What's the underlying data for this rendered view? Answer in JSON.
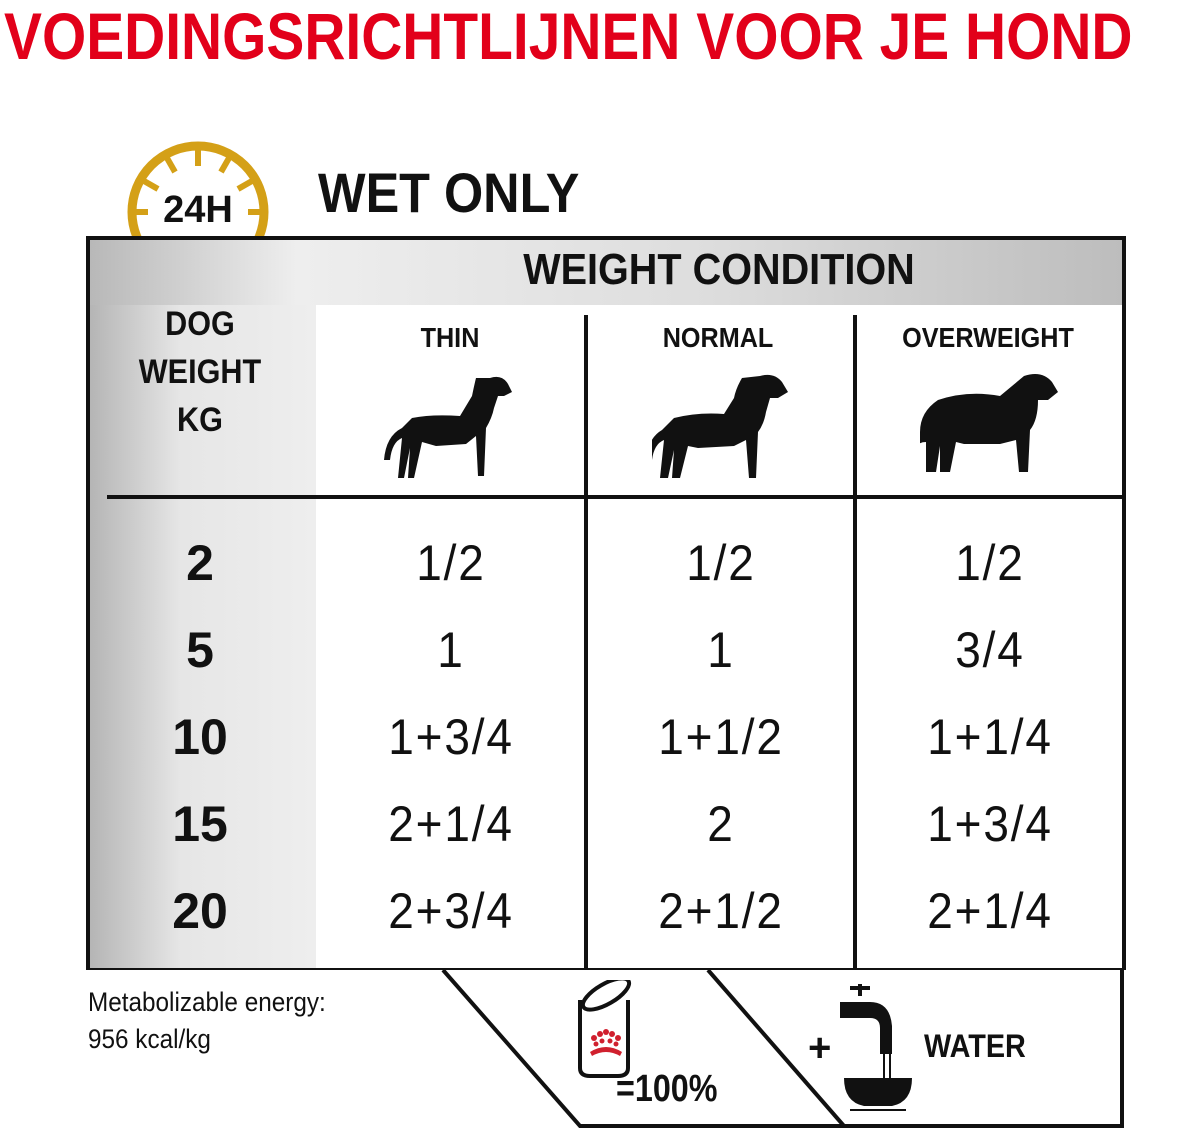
{
  "title": "VOEDINGSRICHTLIJNEN VOOR JE HOND",
  "badge": {
    "label": "24H",
    "icon": "clock-icon",
    "color": "#d4a017"
  },
  "mode": "WET ONLY",
  "table": {
    "group_header": "WEIGHT CONDITION",
    "row_header_lines": [
      "DOG",
      "WEIGHT",
      "KG"
    ],
    "columns": [
      {
        "label": "THIN",
        "icon": "thin-dog-icon"
      },
      {
        "label": "NORMAL",
        "icon": "normal-dog-icon"
      },
      {
        "label": "OVERWEIGHT",
        "icon": "overweight-dog-icon"
      }
    ],
    "rows": [
      {
        "weight": "2",
        "values": [
          "1/2",
          "1/2",
          "1/2"
        ]
      },
      {
        "weight": "5",
        "values": [
          "1",
          "1",
          "3/4"
        ]
      },
      {
        "weight": "10",
        "values": [
          "1+3/4",
          "1+1/2",
          "1+1/4"
        ]
      },
      {
        "weight": "15",
        "values": [
          "2+1/4",
          "2",
          "1+3/4"
        ]
      },
      {
        "weight": "20",
        "values": [
          "2+3/4",
          "2+1/2",
          "2+1/4"
        ]
      }
    ]
  },
  "footer": {
    "energy_label": "Metabolizable energy:",
    "energy_value": "956 kcal/kg",
    "can_label": "=100%",
    "plus": "+",
    "water_label": "WATER"
  },
  "colors": {
    "title": "#e2001a",
    "accent_gold": "#d4a017",
    "crown": "#d0202e"
  }
}
